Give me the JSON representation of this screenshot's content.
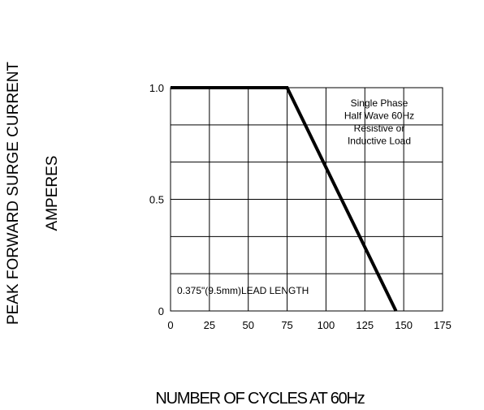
{
  "chart_data": {
    "type": "line",
    "ylabel_line1": "PEAK FORWARD SURGE CURRENT",
    "ylabel_line2": "AMPERES",
    "xlabel": "NUMBER OF CYCLES AT 60Hz",
    "x_ticks": [
      0,
      25,
      50,
      75,
      100,
      125,
      150,
      175
    ],
    "x_tick_labels": [
      "0",
      "25",
      "50",
      "75",
      "100",
      "125",
      "150",
      "175"
    ],
    "y_ticks": [
      0,
      0.5,
      1.0
    ],
    "y_tick_labels": [
      "0",
      "0.5",
      "1.0"
    ],
    "xlim": [
      0,
      175
    ],
    "ylim": [
      0,
      1.0
    ],
    "grid": true,
    "series": [
      {
        "x": [
          0,
          75,
          145
        ],
        "y": [
          1.0,
          1.0,
          0
        ]
      }
    ],
    "annotations": {
      "conditions": [
        "Single Phase",
        "Half Wave 60Hz",
        "Resistive or",
        "Inductive Load"
      ],
      "lead_length": "0.375\"(9.5mm)LEAD LENGTH"
    }
  }
}
